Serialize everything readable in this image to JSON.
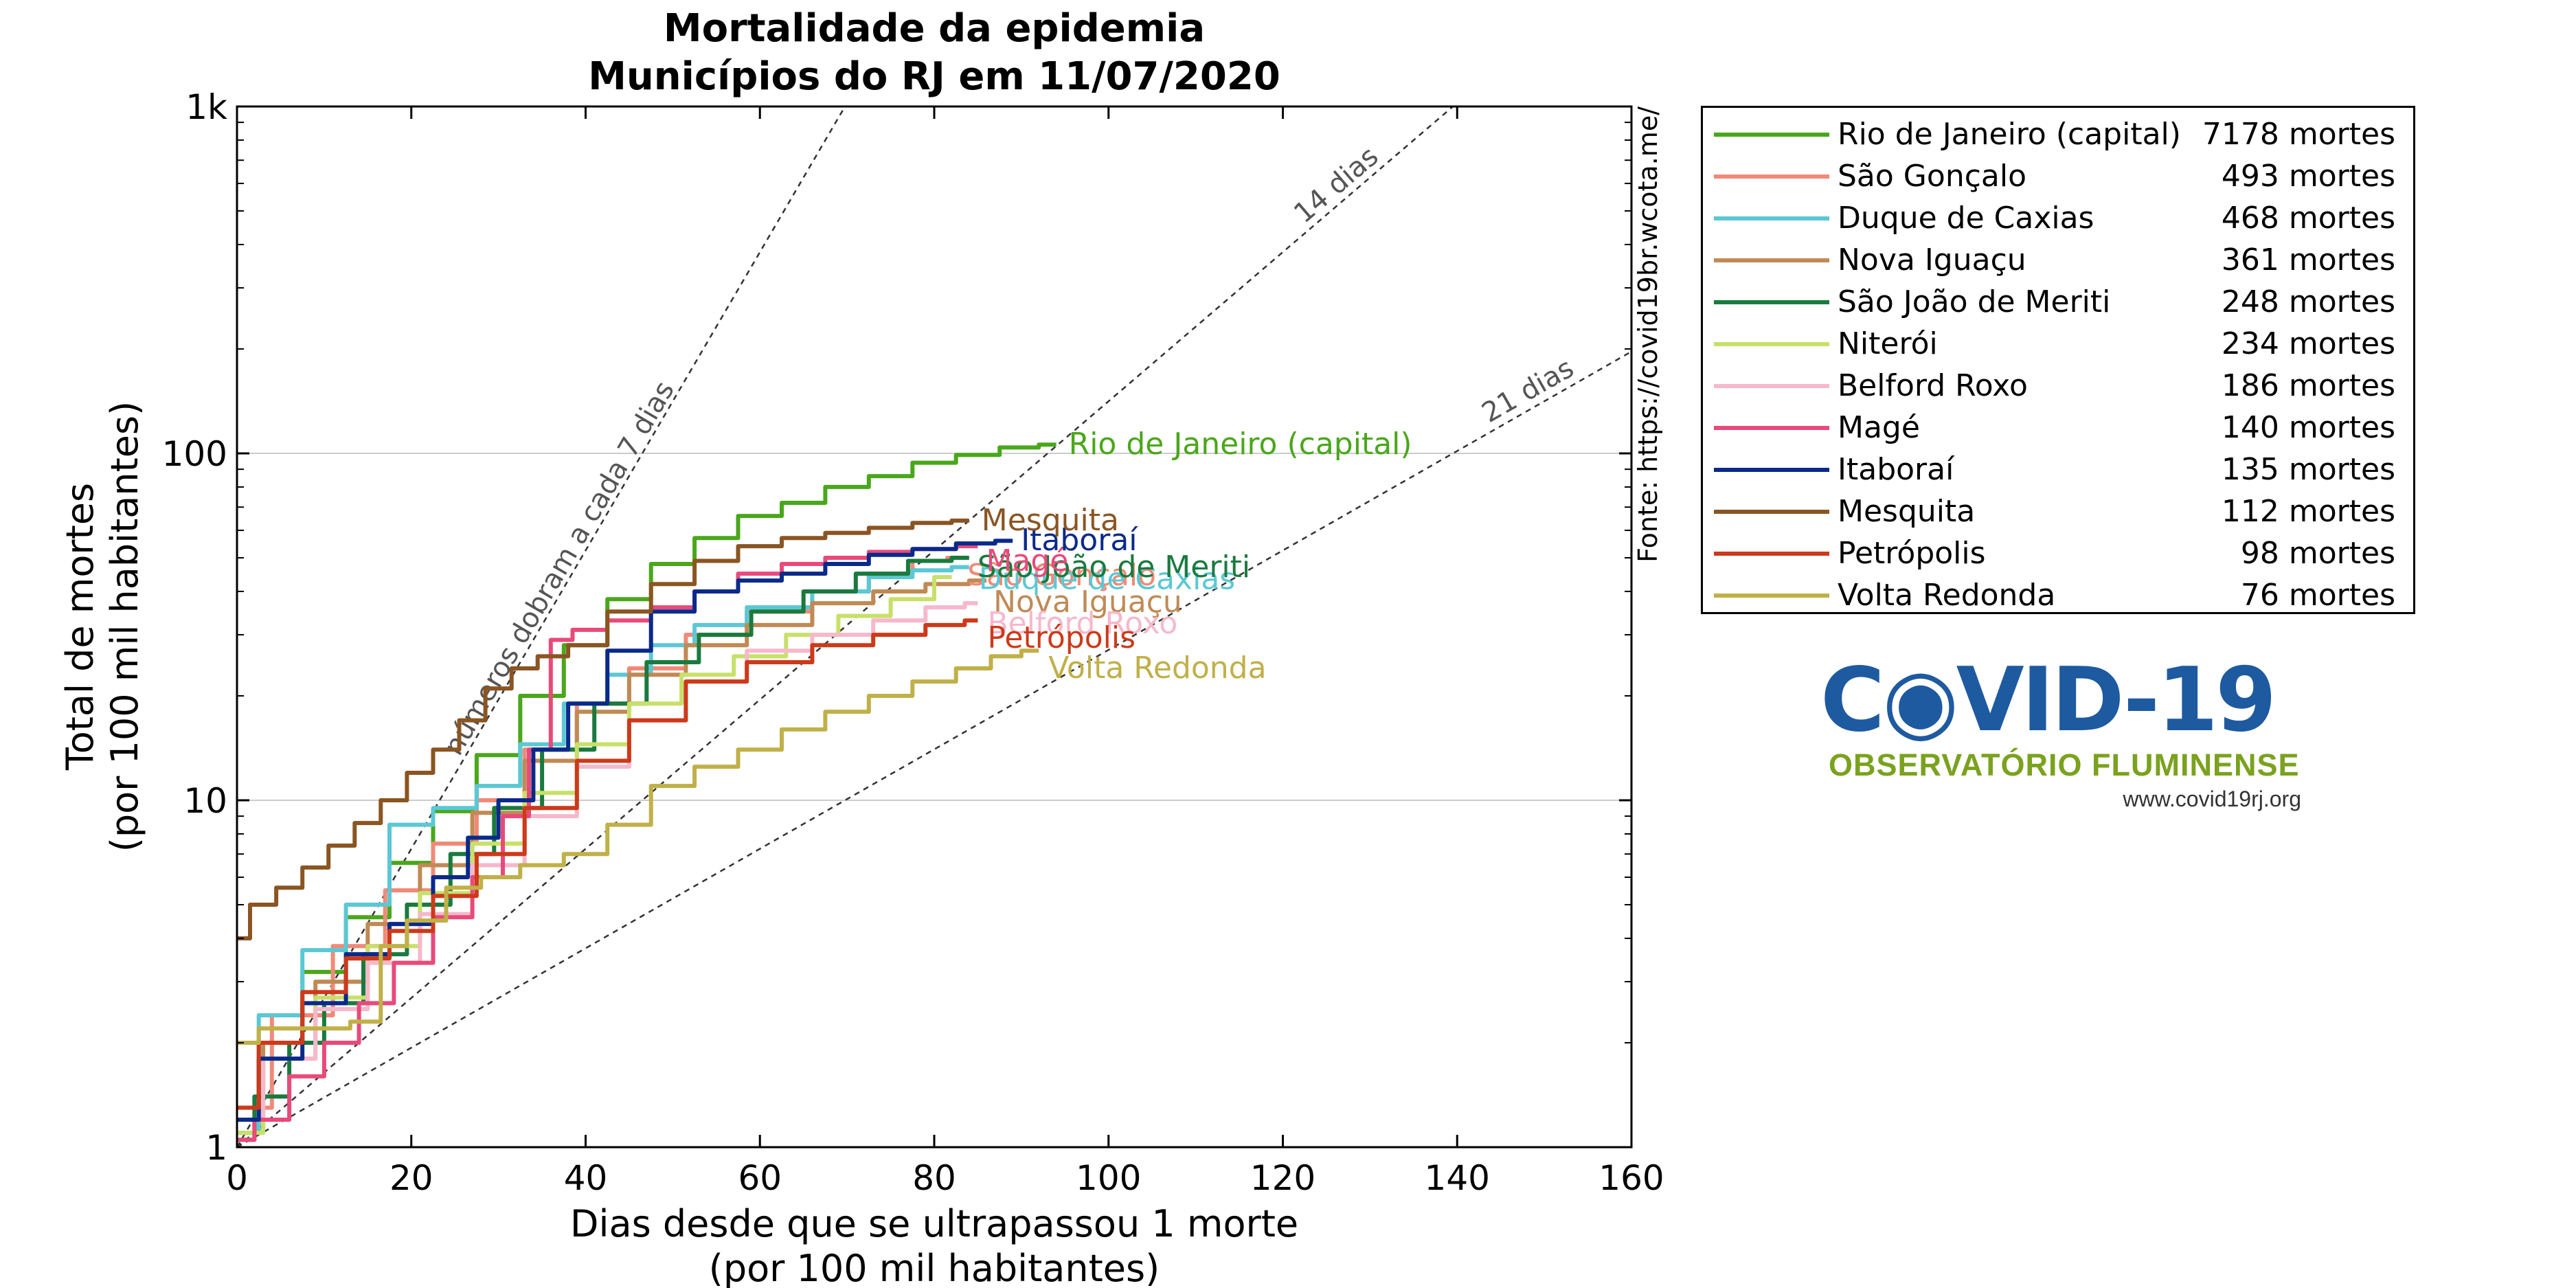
{
  "chart_data": {
    "type": "line",
    "title": "Mortalidade da epidemia",
    "subtitle": "Municípios do RJ em 11/07/2020",
    "xlabel": "Dias desde que se ultrapassou 1 morte",
    "xlabel2": "(por 100 mil habitantes)",
    "ylabel": "Total de mortes",
    "ylabel2": "(por 100 mil habitantes)",
    "xlim": [
      0,
      160
    ],
    "ylim": [
      1,
      1000
    ],
    "yscale": "log",
    "x_ticks": [
      0,
      20,
      40,
      60,
      80,
      100,
      120,
      140,
      160
    ],
    "y_ticks": [
      {
        "value": 1,
        "label": "1"
      },
      {
        "value": 10,
        "label": "10"
      },
      {
        "value": 100,
        "label": "100"
      },
      {
        "value": 1000,
        "label": "1k"
      }
    ],
    "grid": "horizontal at decades",
    "source_note": "Fonte: https://covid19br.wcota.me/",
    "reference_lines": [
      {
        "doubling_days": 7,
        "label": "números dobram a cada 7 dias"
      },
      {
        "doubling_days": 14,
        "label": "14 dias"
      },
      {
        "doubling_days": 21,
        "label": "21 dias"
      }
    ],
    "series": [
      {
        "name": "Rio de Janeiro (capital)",
        "color": "#4aa71b",
        "deaths": "7178 mortes",
        "points": [
          [
            0,
            1.1
          ],
          [
            5,
            2
          ],
          [
            10,
            3.2
          ],
          [
            15,
            4.6
          ],
          [
            20,
            6.6
          ],
          [
            25,
            9.3
          ],
          [
            30,
            13.5
          ],
          [
            35,
            20
          ],
          [
            40,
            28
          ],
          [
            45,
            38
          ],
          [
            50,
            48
          ],
          [
            55,
            57
          ],
          [
            60,
            66
          ],
          [
            65,
            72
          ],
          [
            70,
            80
          ],
          [
            75,
            86
          ],
          [
            80,
            94
          ],
          [
            85,
            99
          ],
          [
            90,
            104
          ],
          [
            94,
            106
          ]
        ]
      },
      {
        "name": "São Gonçalo",
        "color": "#f08a78",
        "deaths": "493 mortes",
        "points": [
          [
            0,
            1.3
          ],
          [
            8,
            2.4
          ],
          [
            14,
            3.8
          ],
          [
            20,
            5.5
          ],
          [
            25,
            7.5
          ],
          [
            30,
            10
          ],
          [
            36,
            14
          ],
          [
            42,
            19
          ],
          [
            48,
            24
          ],
          [
            55,
            30
          ],
          [
            62,
            35
          ],
          [
            70,
            40
          ],
          [
            75,
            45
          ],
          [
            80,
            49
          ],
          [
            83,
            50
          ]
        ]
      },
      {
        "name": "Duque de Caxias",
        "color": "#5bc8d4",
        "deaths": "468 mortes",
        "points": [
          [
            0,
            1.1
          ],
          [
            5,
            2.4
          ],
          [
            10,
            3.7
          ],
          [
            15,
            5
          ],
          [
            20,
            8.5
          ],
          [
            25,
            9.5
          ],
          [
            30,
            11
          ],
          [
            35,
            14.5
          ],
          [
            40,
            19
          ],
          [
            45,
            23
          ],
          [
            50,
            28
          ],
          [
            55,
            32
          ],
          [
            62,
            36
          ],
          [
            70,
            40
          ],
          [
            75,
            44
          ],
          [
            80,
            46
          ],
          [
            84,
            47
          ]
        ]
      },
      {
        "name": "Nova Iguaçu",
        "color": "#c08a55",
        "deaths": "361 mortes",
        "points": [
          [
            0,
            1.1
          ],
          [
            6,
            2
          ],
          [
            12,
            3
          ],
          [
            18,
            4.4
          ],
          [
            24,
            6.5
          ],
          [
            30,
            9.2
          ],
          [
            36,
            13
          ],
          [
            42,
            18
          ],
          [
            48,
            23
          ],
          [
            55,
            28
          ],
          [
            62,
            32
          ],
          [
            70,
            37
          ],
          [
            76,
            40
          ],
          [
            82,
            42
          ],
          [
            86,
            43
          ]
        ]
      },
      {
        "name": "São João de Meriti",
        "color": "#1a7a3e",
        "deaths": "248 mortes",
        "points": [
          [
            0,
            1.05
          ],
          [
            4,
            1.4
          ],
          [
            8,
            2
          ],
          [
            12,
            2.6
          ],
          [
            17,
            3.6
          ],
          [
            22,
            5
          ],
          [
            27,
            7
          ],
          [
            32,
            9.5
          ],
          [
            38,
            14
          ],
          [
            44,
            19
          ],
          [
            50,
            25
          ],
          [
            56,
            30
          ],
          [
            62,
            35
          ],
          [
            68,
            40
          ],
          [
            74,
            45
          ],
          [
            80,
            49
          ],
          [
            84,
            50
          ]
        ]
      },
      {
        "name": "Niterói",
        "color": "#c8e06a",
        "deaths": "234 mortes",
        "points": [
          [
            0,
            1.1
          ],
          [
            6,
            1.8
          ],
          [
            12,
            2.7
          ],
          [
            18,
            3.8
          ],
          [
            24,
            5.4
          ],
          [
            30,
            7.5
          ],
          [
            36,
            10.5
          ],
          [
            42,
            14.5
          ],
          [
            48,
            19
          ],
          [
            54,
            23
          ],
          [
            60,
            26
          ],
          [
            66,
            30
          ],
          [
            72,
            34
          ],
          [
            78,
            38
          ],
          [
            82,
            44
          ]
        ]
      },
      {
        "name": "Belford Roxo",
        "color": "#f6b8cc",
        "deaths": "186 mortes",
        "points": [
          [
            0,
            1.2
          ],
          [
            6,
            1.8
          ],
          [
            12,
            2.5
          ],
          [
            18,
            3.4
          ],
          [
            24,
            4.7
          ],
          [
            30,
            6.5
          ],
          [
            36,
            9
          ],
          [
            42,
            12.5
          ],
          [
            48,
            17
          ],
          [
            55,
            22
          ],
          [
            62,
            27
          ],
          [
            70,
            30
          ],
          [
            76,
            33
          ],
          [
            82,
            36
          ],
          [
            85,
            37
          ]
        ]
      },
      {
        "name": "Magé",
        "color": "#e84a7a",
        "deaths": "140 mortes",
        "points": [
          [
            0,
            1.05
          ],
          [
            4,
            1.2
          ],
          [
            8,
            1.6
          ],
          [
            12,
            2
          ],
          [
            16,
            2.6
          ],
          [
            20,
            3.4
          ],
          [
            25,
            4.6
          ],
          [
            29,
            6
          ],
          [
            32,
            9
          ],
          [
            35,
            14
          ],
          [
            37,
            29
          ],
          [
            40,
            31
          ],
          [
            45,
            33
          ],
          [
            50,
            36
          ],
          [
            55,
            40
          ],
          [
            60,
            45
          ],
          [
            65,
            48
          ],
          [
            70,
            50
          ],
          [
            75,
            52
          ],
          [
            80,
            53
          ],
          [
            85,
            54
          ]
        ]
      },
      {
        "name": "Itaboraí",
        "color": "#0a2a8a",
        "deaths": "135 mortes",
        "points": [
          [
            0,
            1.2
          ],
          [
            5,
            1.8
          ],
          [
            10,
            2.6
          ],
          [
            15,
            3.6
          ],
          [
            20,
            4.4
          ],
          [
            25,
            6
          ],
          [
            28,
            7.8
          ],
          [
            32,
            10
          ],
          [
            36,
            14
          ],
          [
            40,
            19
          ],
          [
            45,
            27
          ],
          [
            50,
            35
          ],
          [
            55,
            40
          ],
          [
            60,
            43
          ],
          [
            65,
            45
          ],
          [
            70,
            48
          ],
          [
            75,
            51
          ],
          [
            80,
            53
          ],
          [
            85,
            55
          ],
          [
            89,
            56
          ]
        ]
      },
      {
        "name": "Mesquita",
        "color": "#8a5522",
        "deaths": "112 mortes",
        "points": [
          [
            0,
            4
          ],
          [
            3,
            5
          ],
          [
            6,
            5.6
          ],
          [
            9,
            6.4
          ],
          [
            12,
            7.4
          ],
          [
            15,
            8.6
          ],
          [
            18,
            10
          ],
          [
            21,
            12
          ],
          [
            24,
            14
          ],
          [
            27,
            17
          ],
          [
            30,
            21
          ],
          [
            33,
            24
          ],
          [
            36,
            26
          ],
          [
            40,
            28
          ],
          [
            45,
            35
          ],
          [
            50,
            42
          ],
          [
            55,
            49
          ],
          [
            60,
            54
          ],
          [
            65,
            57
          ],
          [
            70,
            59
          ],
          [
            75,
            61
          ],
          [
            80,
            63
          ],
          [
            84,
            64
          ]
        ]
      },
      {
        "name": "Petrópolis",
        "color": "#cc3a1a",
        "deaths": "98 mortes",
        "points": [
          [
            0,
            1.3
          ],
          [
            5,
            2
          ],
          [
            10,
            2.8
          ],
          [
            15,
            3.5
          ],
          [
            20,
            4.2
          ],
          [
            25,
            5.3
          ],
          [
            30,
            7
          ],
          [
            36,
            9.5
          ],
          [
            42,
            13
          ],
          [
            48,
            17
          ],
          [
            55,
            22
          ],
          [
            62,
            25
          ],
          [
            70,
            28
          ],
          [
            76,
            30
          ],
          [
            82,
            32
          ],
          [
            85,
            33
          ]
        ]
      },
      {
        "name": "Volta Redonda",
        "color": "#c0b048",
        "deaths": "76 mortes",
        "points": [
          [
            0,
            2
          ],
          [
            5,
            2.2
          ],
          [
            10,
            2.2
          ],
          [
            16,
            2.3
          ],
          [
            17,
            3.8
          ],
          [
            22,
            4.5
          ],
          [
            26,
            5.6
          ],
          [
            30,
            6
          ],
          [
            35,
            6.5
          ],
          [
            40,
            7
          ],
          [
            45,
            8.5
          ],
          [
            50,
            11
          ],
          [
            55,
            12.5
          ],
          [
            60,
            14
          ],
          [
            65,
            16
          ],
          [
            70,
            18
          ],
          [
            75,
            20
          ],
          [
            80,
            22
          ],
          [
            85,
            24
          ],
          [
            88,
            26
          ],
          [
            92,
            27
          ]
        ]
      }
    ]
  },
  "logo": {
    "main": "C◉VID-19",
    "sub": "OBSERVATÓRIO FLUMINENSE",
    "url": "www.covid19rj.org"
  }
}
